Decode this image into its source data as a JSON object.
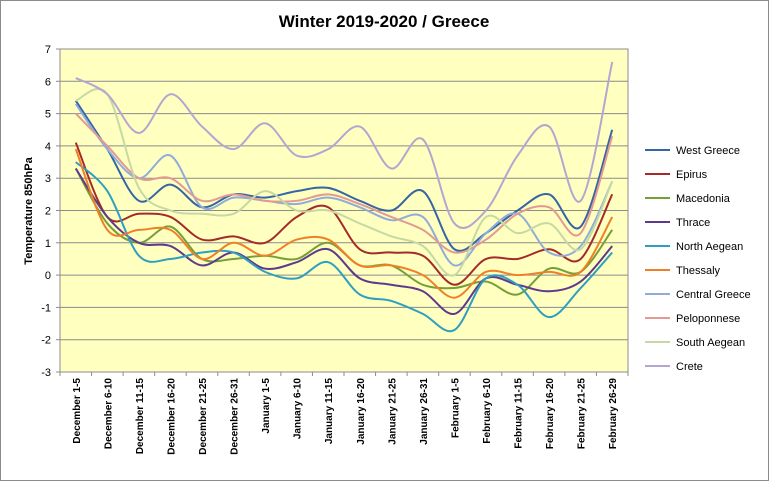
{
  "chart_data": {
    "type": "line",
    "title": "Winter 2019-2020 / Greece",
    "xlabel": "",
    "ylabel": "Temperature 850hPa",
    "ylim": [
      -3,
      7
    ],
    "yticks": [
      -3,
      -2,
      -1,
      0,
      1,
      2,
      3,
      4,
      5,
      6,
      7
    ],
    "grid": true,
    "legend": "right",
    "categories": [
      "December 1-5",
      "December 6-10",
      "December 11-15",
      "December 16-20",
      "December 21-25",
      "December 26-31",
      "January 1-5",
      "January 6-10",
      "January 11-15",
      "January 16-20",
      "January 21-25",
      "January 26-31",
      "February 1-5",
      "February 6-10",
      "February 11-15",
      "February 16-20",
      "February 21-25",
      "February 26-29"
    ],
    "series": [
      {
        "name": "West Greece",
        "color": "#3465A4",
        "values": [
          5.4,
          3.9,
          2.3,
          2.8,
          2.1,
          2.5,
          2.4,
          2.6,
          2.7,
          2.3,
          2.0,
          2.6,
          0.8,
          1.3,
          2.0,
          2.5,
          1.5,
          4.5
        ]
      },
      {
        "name": "Epirus",
        "color": "#A52A2A",
        "values": [
          4.1,
          1.8,
          1.9,
          1.8,
          1.1,
          1.2,
          1.0,
          1.8,
          2.1,
          0.8,
          0.7,
          0.6,
          -0.3,
          0.5,
          0.5,
          0.8,
          0.5,
          2.5
        ]
      },
      {
        "name": "Macedonia",
        "color": "#76A037",
        "values": [
          3.3,
          1.6,
          1.0,
          1.5,
          0.5,
          0.5,
          0.6,
          0.5,
          1.0,
          0.3,
          0.3,
          -0.3,
          -0.4,
          -0.2,
          -0.6,
          0.2,
          0.1,
          1.4
        ]
      },
      {
        "name": "Thrace",
        "color": "#5E3A8C",
        "values": [
          3.3,
          1.8,
          1.0,
          0.9,
          0.3,
          0.7,
          0.2,
          0.4,
          0.8,
          -0.1,
          -0.3,
          -0.5,
          -1.2,
          -0.1,
          -0.3,
          -0.5,
          -0.2,
          0.9
        ]
      },
      {
        "name": "North Aegean",
        "color": "#2E9FC0",
        "values": [
          3.5,
          2.6,
          0.6,
          0.5,
          0.7,
          0.7,
          0.1,
          -0.1,
          0.4,
          -0.6,
          -0.8,
          -1.2,
          -1.7,
          -0.1,
          -0.3,
          -1.3,
          -0.4,
          0.7
        ]
      },
      {
        "name": "Thessaly",
        "color": "#F07F28",
        "values": [
          3.9,
          1.4,
          1.4,
          1.4,
          0.5,
          1.0,
          0.6,
          1.1,
          1.1,
          0.3,
          0.3,
          0.0,
          -0.7,
          0.1,
          0.0,
          0.1,
          0.1,
          1.8
        ]
      },
      {
        "name": "Central Greece",
        "color": "#8FACDA",
        "values": [
          5.3,
          3.9,
          3.0,
          3.7,
          2.1,
          2.4,
          2.3,
          2.2,
          2.4,
          2.1,
          1.7,
          1.8,
          0.3,
          1.3,
          1.9,
          0.7,
          0.9,
          2.9
        ]
      },
      {
        "name": "Peloponnese",
        "color": "#E29A93",
        "values": [
          5.0,
          4.0,
          3.0,
          3.0,
          2.3,
          2.5,
          2.3,
          2.3,
          2.5,
          2.2,
          1.8,
          1.4,
          0.7,
          1.1,
          1.9,
          2.1,
          1.3,
          4.3
        ]
      },
      {
        "name": "South Aegean",
        "color": "#C5D9A4",
        "values": [
          5.4,
          5.6,
          2.7,
          2.0,
          1.9,
          1.9,
          2.6,
          2.0,
          2.0,
          1.6,
          1.2,
          0.9,
          0.0,
          1.8,
          1.3,
          1.6,
          0.8,
          2.9
        ]
      },
      {
        "name": "Crete",
        "color": "#B5A5D1",
        "values": [
          6.1,
          5.6,
          4.4,
          5.6,
          4.6,
          3.9,
          4.7,
          3.7,
          3.9,
          4.6,
          3.3,
          4.2,
          1.6,
          2.0,
          3.7,
          4.6,
          2.3,
          6.6
        ]
      }
    ]
  }
}
